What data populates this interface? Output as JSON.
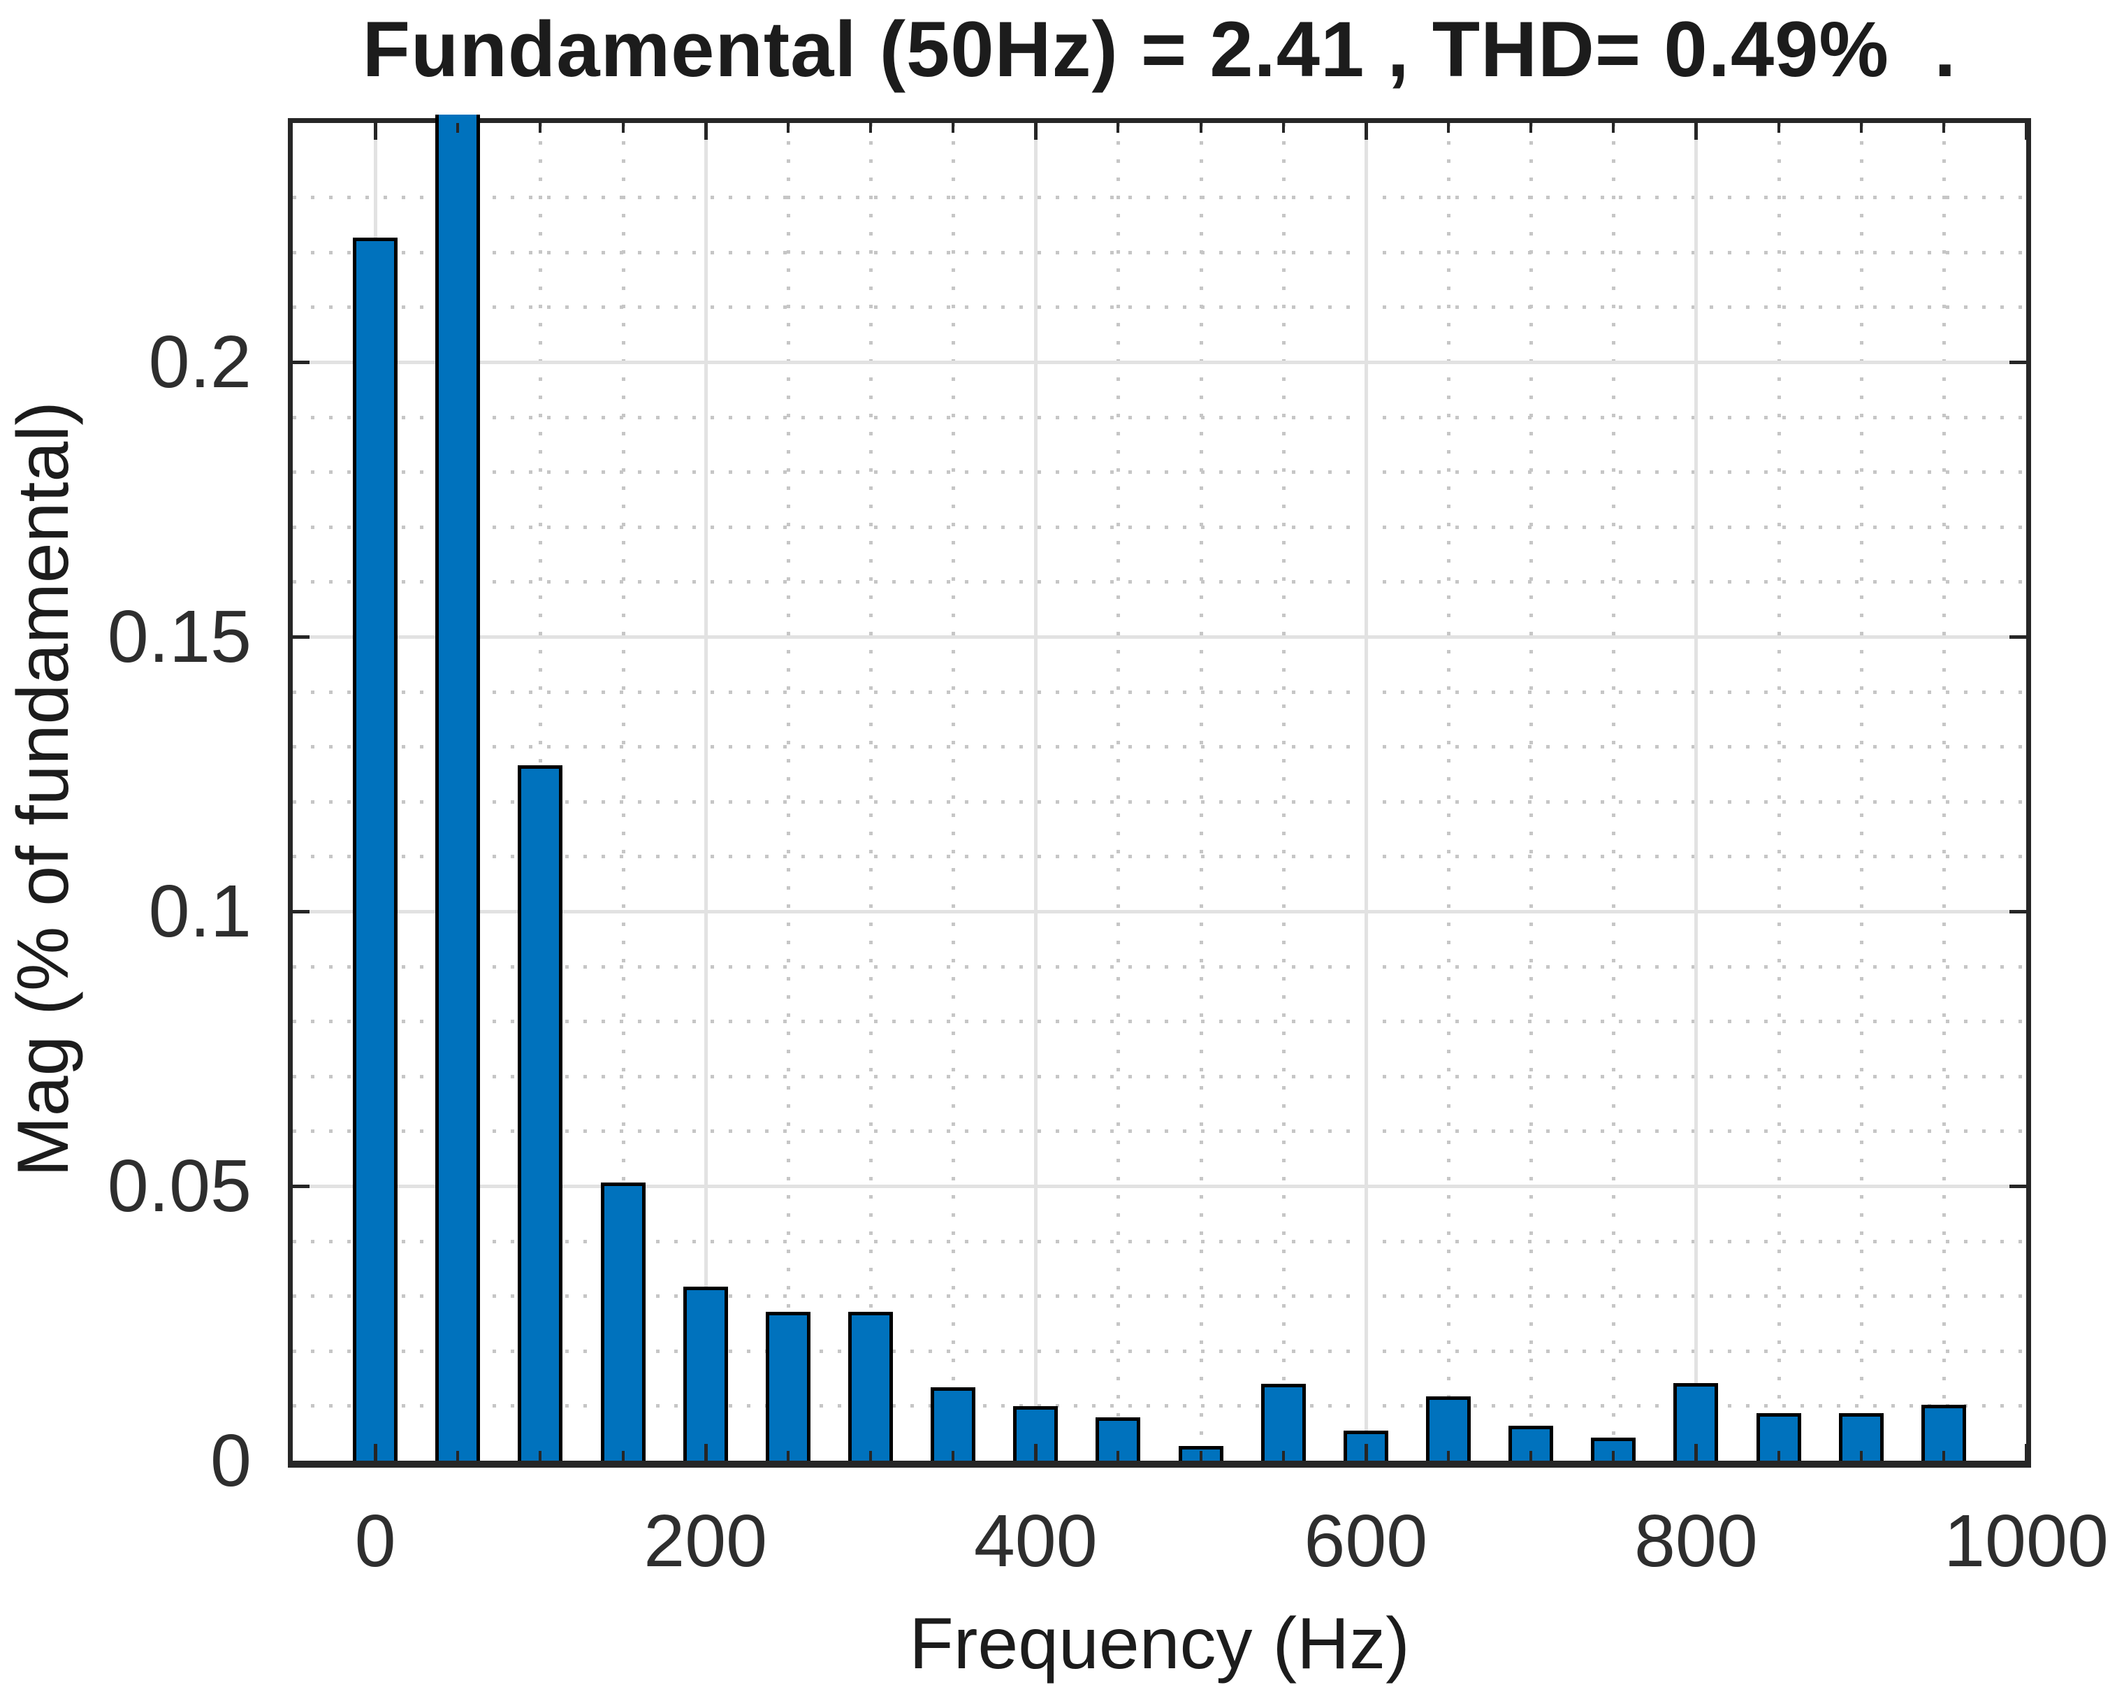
{
  "chart_data": {
    "type": "bar",
    "title": "Fundamental (50Hz) = 2.41 , THD= 0.49%  .",
    "xlabel": "Frequency (Hz)",
    "ylabel": "Mag (% of fundamental)",
    "x": [
      0,
      50,
      100,
      150,
      200,
      250,
      300,
      350,
      400,
      450,
      500,
      550,
      600,
      650,
      700,
      750,
      800,
      850,
      900,
      950
    ],
    "values": [
      0.222,
      0.2435,
      0.126,
      0.05,
      0.031,
      0.0265,
      0.0265,
      0.0127,
      0.0093,
      0.0073,
      0.002,
      0.0134,
      0.0048,
      0.0111,
      0.0057,
      0.0035,
      0.0135,
      0.008,
      0.008,
      0.0095
    ],
    "clipped": [
      false,
      true,
      false,
      false,
      false,
      false,
      false,
      false,
      false,
      false,
      false,
      false,
      false,
      false,
      false,
      false,
      false,
      false,
      false,
      false
    ],
    "clipped_note": "50Hz fundamental bar exceeds axis maximum and is clipped at top of plot",
    "xlim": [
      -50,
      1000
    ],
    "ylim": [
      0,
      0.2435
    ],
    "xticks": [
      0,
      200,
      400,
      600,
      800,
      1000
    ],
    "xtick_labels": [
      "0",
      "200",
      "400",
      "600",
      "800",
      "1000"
    ],
    "yticks": [
      0,
      0.05,
      0.1,
      0.15,
      0.2
    ],
    "ytick_labels": [
      "0",
      "0.05",
      "0.1",
      "0.15",
      "0.2"
    ],
    "minor_x_step": 50,
    "minor_y_step": 0.01,
    "grid": {
      "major": "solid",
      "minor": "dotted",
      "legend": "none"
    },
    "bar_color": "#0072BD",
    "bar_edge_color": "#000000",
    "frame_color": "#262626",
    "major_grid_color": "#e2e2e2",
    "minor_grid_color": "#c6c6c6",
    "text_color": "#1c1c1c"
  }
}
